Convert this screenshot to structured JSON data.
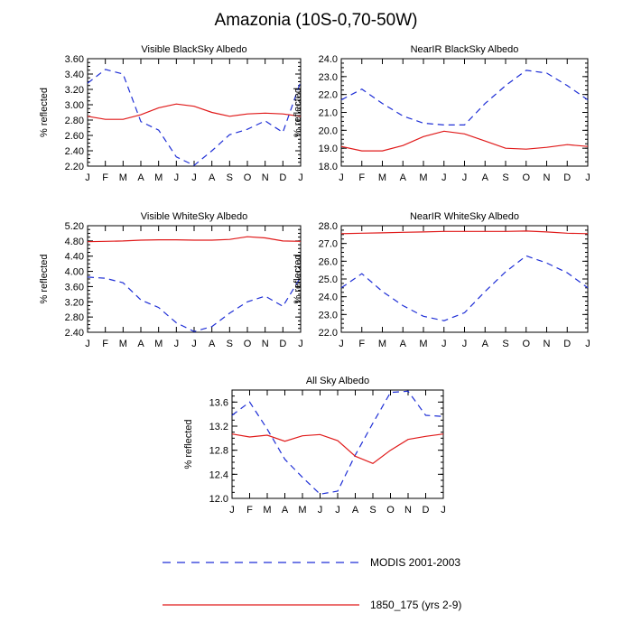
{
  "title": "Amazonia (10S-0,70-50W)",
  "months": [
    "J",
    "F",
    "M",
    "A",
    "M",
    "J",
    "J",
    "A",
    "S",
    "O",
    "N",
    "D",
    "J"
  ],
  "colors": {
    "modis": "#1f2fd6",
    "model": "#e01a1a"
  },
  "legend": [
    {
      "label": "MODIS 2001-2003",
      "style": "dashed",
      "color": "#1f2fd6"
    },
    {
      "label": "1850_175 (yrs 2-9)",
      "style": "solid",
      "color": "#e01a1a"
    }
  ],
  "chart_data": [
    {
      "type": "line",
      "title": "Visible BlackSky Albedo",
      "ylabel": "% reflected",
      "ylim": [
        2.2,
        3.6
      ],
      "yticks": [
        "2.20",
        "2.40",
        "2.60",
        "2.80",
        "3.00",
        "3.20",
        "3.40",
        "3.60"
      ],
      "x": [
        "J",
        "F",
        "M",
        "A",
        "M",
        "J",
        "J",
        "A",
        "S",
        "O",
        "N",
        "D",
        "J"
      ],
      "series": [
        {
          "name": "MODIS 2001-2003",
          "values": [
            3.28,
            3.46,
            3.4,
            2.78,
            2.67,
            2.32,
            2.21,
            2.4,
            2.61,
            2.68,
            2.79,
            2.64,
            3.3
          ]
        },
        {
          "name": "1850_175 (yrs 2-9)",
          "values": [
            2.85,
            2.81,
            2.81,
            2.87,
            2.96,
            3.01,
            2.98,
            2.9,
            2.85,
            2.88,
            2.89,
            2.88,
            2.85
          ]
        }
      ]
    },
    {
      "type": "line",
      "title": "NearIR BlackSky Albedo",
      "ylabel": "% reflected",
      "ylim": [
        18.0,
        24.0
      ],
      "yticks": [
        "18.0",
        "19.0",
        "20.0",
        "21.0",
        "22.0",
        "23.0",
        "24.0"
      ],
      "x": [
        "J",
        "F",
        "M",
        "A",
        "M",
        "J",
        "J",
        "A",
        "S",
        "O",
        "N",
        "D",
        "J"
      ],
      "series": [
        {
          "name": "MODIS 2001-2003",
          "values": [
            21.7,
            22.3,
            21.5,
            20.8,
            20.4,
            20.3,
            20.3,
            21.5,
            22.5,
            23.35,
            23.2,
            22.5,
            21.7
          ]
        },
        {
          "name": "1850_175 (yrs 2-9)",
          "values": [
            19.1,
            18.85,
            18.85,
            19.15,
            19.65,
            19.95,
            19.8,
            19.4,
            19.0,
            18.95,
            19.05,
            19.2,
            19.1
          ]
        }
      ]
    },
    {
      "type": "line",
      "title": "Visible WhiteSky Albedo",
      "ylabel": "% reflected",
      "ylim": [
        2.4,
        5.2
      ],
      "yticks": [
        "2.40",
        "2.80",
        "3.20",
        "3.60",
        "4.00",
        "4.40",
        "4.80",
        "5.20"
      ],
      "x": [
        "J",
        "F",
        "M",
        "A",
        "M",
        "J",
        "J",
        "A",
        "S",
        "O",
        "N",
        "D",
        "J"
      ],
      "series": [
        {
          "name": "MODIS 2001-2003",
          "values": [
            3.85,
            3.82,
            3.7,
            3.25,
            3.05,
            2.65,
            2.42,
            2.55,
            2.9,
            3.2,
            3.35,
            3.08,
            3.85
          ]
        },
        {
          "name": "1850_175 (yrs 2-9)",
          "values": [
            4.78,
            4.79,
            4.8,
            4.82,
            4.83,
            4.83,
            4.82,
            4.82,
            4.84,
            4.91,
            4.88,
            4.8,
            4.79
          ]
        }
      ]
    },
    {
      "type": "line",
      "title": "NearIR WhiteSky Albedo",
      "ylabel": "% reflected",
      "ylim": [
        22.0,
        28.0
      ],
      "yticks": [
        "22.0",
        "23.0",
        "24.0",
        "25.0",
        "26.0",
        "27.0",
        "28.0"
      ],
      "x": [
        "J",
        "F",
        "M",
        "A",
        "M",
        "J",
        "J",
        "A",
        "S",
        "O",
        "N",
        "D",
        "J"
      ],
      "series": [
        {
          "name": "MODIS 2001-2003",
          "values": [
            24.5,
            25.3,
            24.3,
            23.5,
            22.9,
            22.65,
            23.1,
            24.3,
            25.4,
            26.3,
            25.9,
            25.35,
            24.5
          ]
        },
        {
          "name": "1850_175 (yrs 2-9)",
          "values": [
            27.55,
            27.58,
            27.6,
            27.63,
            27.65,
            27.68,
            27.68,
            27.68,
            27.68,
            27.7,
            27.65,
            27.58,
            27.55
          ]
        }
      ]
    },
    {
      "type": "line",
      "title": "All Sky Albedo",
      "ylabel": "% reflected",
      "ylim": [
        12.0,
        13.8
      ],
      "yticks": [
        "12.0",
        "12.4",
        "12.8",
        "13.2",
        "13.6"
      ],
      "x": [
        "J",
        "F",
        "M",
        "A",
        "M",
        "J",
        "J",
        "A",
        "S",
        "O",
        "N",
        "D",
        "J"
      ],
      "series": [
        {
          "name": "MODIS 2001-2003",
          "values": [
            13.38,
            13.6,
            13.15,
            12.65,
            12.35,
            12.07,
            12.12,
            12.72,
            13.25,
            13.76,
            13.78,
            13.38,
            13.36
          ]
        },
        {
          "name": "1850_175 (yrs 2-9)",
          "values": [
            13.07,
            13.02,
            13.05,
            12.95,
            13.04,
            13.06,
            12.96,
            12.7,
            12.58,
            12.8,
            12.98,
            13.03,
            13.07
          ]
        }
      ]
    }
  ]
}
